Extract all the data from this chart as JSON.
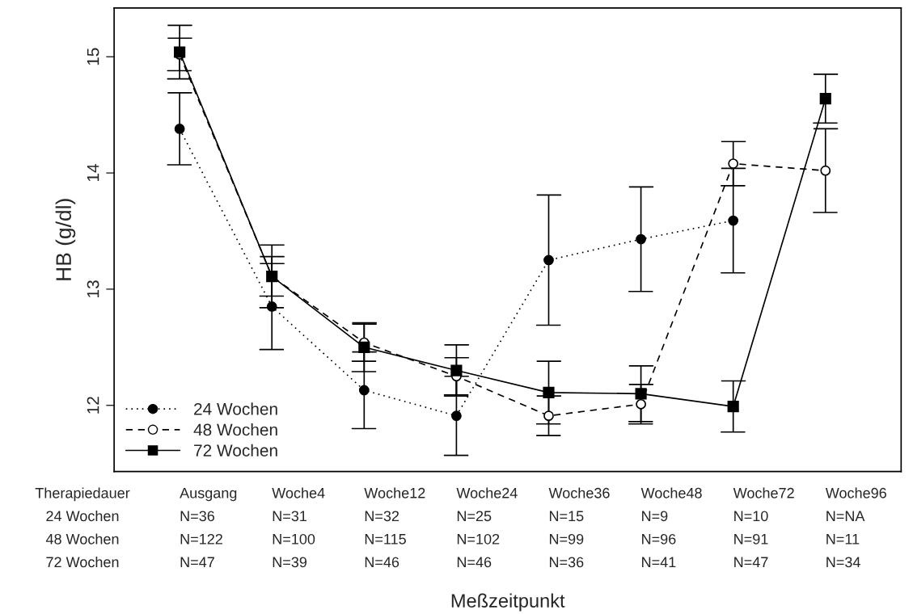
{
  "chart_data": {
    "type": "line",
    "ylabel": "HB (g/dl)",
    "xlabel": "Meßzeitpunkt",
    "categories": [
      "Ausgang",
      "Woche4",
      "Woche12",
      "Woche24",
      "Woche36",
      "Woche48",
      "Woche72",
      "Woche96"
    ],
    "series": [
      {
        "name": "24 Wochen",
        "color": "#000000",
        "marker": "circle",
        "line_style": "dotted",
        "values": [
          14.38,
          12.85,
          12.13,
          11.91,
          13.25,
          13.43,
          13.59,
          null
        ],
        "errors": [
          0.31,
          0.37,
          0.33,
          0.34,
          0.56,
          0.45,
          0.45,
          null
        ]
      },
      {
        "name": "48 Wochen",
        "color": "#000000",
        "marker": "circle",
        "colors": [
          "#ffffff",
          "#ffffff",
          "#ffffff",
          "#ffffff",
          "#ffffff",
          "#ffffff",
          "#ffffff",
          "#ffffff"
        ],
        "line_style": "dashed",
        "values": [
          15.02,
          13.11,
          12.54,
          12.25,
          11.91,
          12.01,
          14.08,
          14.02
        ],
        "errors": [
          0.14,
          0.17,
          0.16,
          0.16,
          0.17,
          0.17,
          0.19,
          0.36
        ]
      },
      {
        "name": "72 Wochen",
        "color": "#000000",
        "marker": "square",
        "line_style": "solid",
        "values": [
          15.04,
          13.11,
          12.5,
          12.3,
          12.11,
          12.1,
          11.99,
          14.64
        ],
        "errors": [
          0.23,
          0.27,
          0.21,
          0.22,
          0.27,
          0.24,
          0.22,
          0.21
        ]
      }
    ],
    "ylim": [
      11.43,
      15.42
    ],
    "yticks": [
      12,
      13,
      14,
      15
    ],
    "grid": false,
    "legend": "bottom left",
    "annotations": [
      "Therapiedauer",
      "24 Wochen",
      "N=36",
      "N=31",
      "N=32",
      "N=25",
      "N=15",
      "N=9",
      "N=10",
      "N=NA",
      "48 Wochen",
      "N=122",
      "N=100",
      "N=115",
      "N=102",
      "N=99",
      "N=96",
      "N=91",
      "N=11",
      "72 Wochen",
      "N=47",
      "N=39",
      "N=46",
      "N=46",
      "N=36",
      "N=41",
      "N=47",
      "N=34"
    ]
  }
}
